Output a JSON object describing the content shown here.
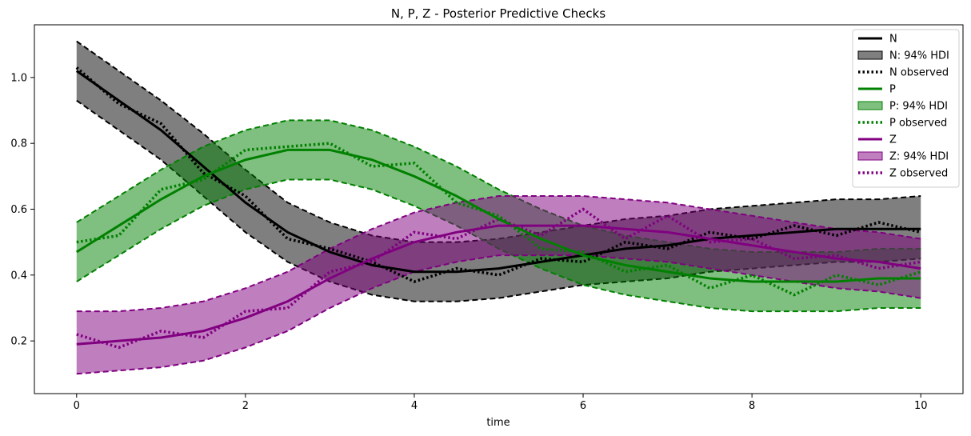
{
  "chart_data": {
    "type": "line",
    "title": "N, P, Z - Posterior Predictive Checks",
    "xlabel": "time",
    "ylabel": "",
    "xlim": [
      -0.5,
      10.5
    ],
    "ylim": [
      0.04,
      1.16
    ],
    "x_ticks": [
      0,
      2,
      4,
      6,
      8,
      10
    ],
    "y_ticks": [
      0.2,
      0.4,
      0.6,
      0.8,
      1.0
    ],
    "x_tick_labels": [
      "0",
      "2",
      "4",
      "6",
      "8",
      "10"
    ],
    "y_tick_labels": [
      "0.2",
      "0.4",
      "0.6",
      "0.8",
      "1.0"
    ],
    "grid": false,
    "legend_position": "top-right",
    "x": [
      0,
      0.5,
      1,
      1.5,
      2,
      2.5,
      3,
      3.5,
      4,
      4.5,
      5,
      5.5,
      6,
      6.5,
      7,
      7.5,
      8,
      8.5,
      9,
      9.5,
      10
    ],
    "series": [
      {
        "name": "N",
        "color": "#000000",
        "mean": [
          1.02,
          0.93,
          0.84,
          0.73,
          0.62,
          0.53,
          0.47,
          0.43,
          0.41,
          0.41,
          0.42,
          0.44,
          0.46,
          0.48,
          0.49,
          0.51,
          0.52,
          0.53,
          0.54,
          0.54,
          0.54
        ],
        "hdi_lower": [
          0.93,
          0.84,
          0.75,
          0.64,
          0.53,
          0.44,
          0.38,
          0.34,
          0.32,
          0.32,
          0.33,
          0.35,
          0.37,
          0.38,
          0.39,
          0.41,
          0.42,
          0.43,
          0.44,
          0.44,
          0.45
        ],
        "hdi_upper": [
          1.11,
          1.02,
          0.93,
          0.83,
          0.72,
          0.62,
          0.56,
          0.52,
          0.5,
          0.5,
          0.51,
          0.53,
          0.55,
          0.57,
          0.58,
          0.6,
          0.61,
          0.62,
          0.63,
          0.63,
          0.64
        ],
        "observed": [
          1.03,
          0.92,
          0.86,
          0.71,
          0.64,
          0.51,
          0.48,
          0.44,
          0.38,
          0.42,
          0.4,
          0.45,
          0.44,
          0.5,
          0.48,
          0.53,
          0.51,
          0.55,
          0.52,
          0.56,
          0.53
        ]
      },
      {
        "name": "P",
        "color": "#008000",
        "mean": [
          0.47,
          0.55,
          0.63,
          0.7,
          0.75,
          0.78,
          0.78,
          0.75,
          0.7,
          0.64,
          0.57,
          0.51,
          0.46,
          0.43,
          0.41,
          0.39,
          0.38,
          0.38,
          0.38,
          0.39,
          0.39
        ],
        "hdi_lower": [
          0.38,
          0.46,
          0.54,
          0.61,
          0.66,
          0.69,
          0.69,
          0.66,
          0.61,
          0.55,
          0.48,
          0.42,
          0.37,
          0.34,
          0.32,
          0.3,
          0.29,
          0.29,
          0.29,
          0.3,
          0.3
        ],
        "hdi_upper": [
          0.56,
          0.64,
          0.72,
          0.79,
          0.84,
          0.87,
          0.87,
          0.84,
          0.79,
          0.73,
          0.66,
          0.6,
          0.55,
          0.52,
          0.5,
          0.48,
          0.47,
          0.47,
          0.47,
          0.48,
          0.48
        ],
        "observed": [
          0.5,
          0.52,
          0.66,
          0.69,
          0.78,
          0.79,
          0.8,
          0.73,
          0.74,
          0.62,
          0.58,
          0.48,
          0.47,
          0.41,
          0.43,
          0.36,
          0.4,
          0.34,
          0.4,
          0.37,
          0.41
        ]
      },
      {
        "name": "Z",
        "color": "#800080",
        "mean": [
          0.19,
          0.2,
          0.21,
          0.23,
          0.27,
          0.32,
          0.39,
          0.45,
          0.5,
          0.53,
          0.55,
          0.55,
          0.55,
          0.54,
          0.53,
          0.51,
          0.49,
          0.47,
          0.45,
          0.44,
          0.42
        ],
        "hdi_lower": [
          0.1,
          0.11,
          0.12,
          0.14,
          0.18,
          0.23,
          0.3,
          0.36,
          0.41,
          0.44,
          0.46,
          0.46,
          0.46,
          0.45,
          0.44,
          0.42,
          0.4,
          0.38,
          0.36,
          0.35,
          0.33
        ],
        "hdi_upper": [
          0.29,
          0.29,
          0.3,
          0.32,
          0.36,
          0.41,
          0.48,
          0.54,
          0.59,
          0.62,
          0.64,
          0.64,
          0.64,
          0.63,
          0.62,
          0.6,
          0.58,
          0.56,
          0.54,
          0.53,
          0.51
        ],
        "observed": [
          0.22,
          0.18,
          0.23,
          0.21,
          0.29,
          0.3,
          0.41,
          0.44,
          0.53,
          0.51,
          0.57,
          0.52,
          0.6,
          0.51,
          0.58,
          0.5,
          0.51,
          0.45,
          0.46,
          0.42,
          0.44
        ]
      }
    ],
    "legend": [
      {
        "label": "N",
        "kind": "line",
        "color": "#000000"
      },
      {
        "label": "N: 94% HDI",
        "kind": "patch",
        "color": "#000000"
      },
      {
        "label": "N observed",
        "kind": "dotted",
        "color": "#000000"
      },
      {
        "label": "P",
        "kind": "line",
        "color": "#008000"
      },
      {
        "label": "P: 94% HDI",
        "kind": "patch",
        "color": "#008000"
      },
      {
        "label": "P observed",
        "kind": "dotted",
        "color": "#008000"
      },
      {
        "label": "Z",
        "kind": "line",
        "color": "#800080"
      },
      {
        "label": "Z: 94% HDI",
        "kind": "patch",
        "color": "#800080"
      },
      {
        "label": "Z observed",
        "kind": "dotted",
        "color": "#800080"
      }
    ]
  }
}
